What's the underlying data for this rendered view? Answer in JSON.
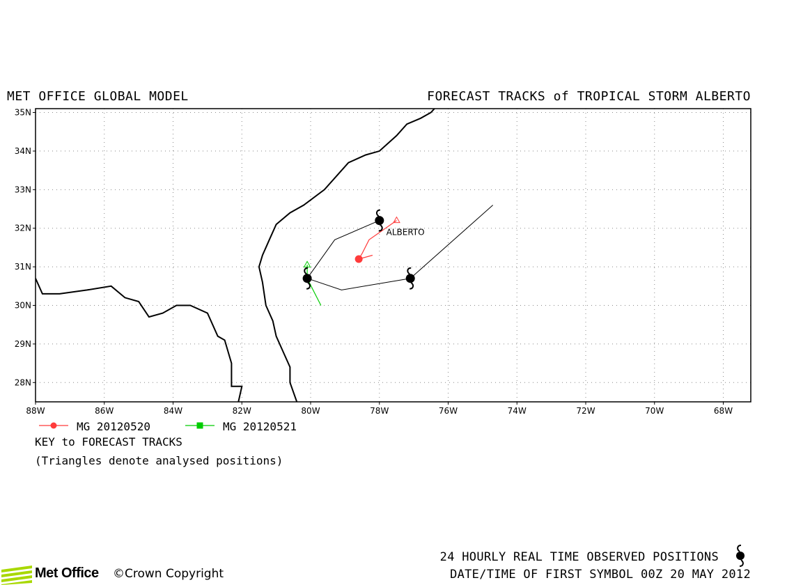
{
  "header": {
    "left_title": "MET OFFICE GLOBAL MODEL",
    "right_title": "FORECAST TRACKS of TROPICAL STORM ALBERTO"
  },
  "chart_data": {
    "type": "map",
    "lon_range": [
      -88,
      -67.2
    ],
    "lat_range": [
      27.5,
      35.1
    ],
    "grid": true,
    "lon_ticks": [
      -88,
      -86,
      -84,
      -82,
      -80,
      -78,
      -76,
      -74,
      -72,
      -70,
      -68
    ],
    "lat_ticks": [
      28,
      29,
      30,
      31,
      32,
      33,
      34,
      35
    ],
    "lon_labels": [
      "88W",
      "86W",
      "84W",
      "82W",
      "80W",
      "78W",
      "76W",
      "74W",
      "72W",
      "70W",
      "68W"
    ],
    "lat_labels": [
      "28N",
      "29N",
      "30N",
      "31N",
      "32N",
      "33N",
      "34N",
      "35N"
    ],
    "storm_label": {
      "text": "ALBERTO",
      "lon": -77.8,
      "lat": 31.9
    },
    "coastline_east": [
      [
        -76.3,
        35.2
      ],
      [
        -76.5,
        35.0
      ],
      [
        -76.8,
        34.85
      ],
      [
        -77.2,
        34.7
      ],
      [
        -77.5,
        34.4
      ],
      [
        -78.0,
        34.0
      ],
      [
        -78.4,
        33.9
      ],
      [
        -78.9,
        33.7
      ],
      [
        -79.2,
        33.4
      ],
      [
        -79.6,
        33.0
      ],
      [
        -80.2,
        32.6
      ],
      [
        -80.6,
        32.4
      ],
      [
        -81.0,
        32.1
      ],
      [
        -81.2,
        31.7
      ],
      [
        -81.4,
        31.3
      ],
      [
        -81.5,
        31.0
      ],
      [
        -81.4,
        30.6
      ],
      [
        -81.3,
        30.0
      ],
      [
        -81.1,
        29.6
      ],
      [
        -81.0,
        29.2
      ],
      [
        -80.8,
        28.8
      ],
      [
        -80.6,
        28.4
      ],
      [
        -80.6,
        28.0
      ],
      [
        -80.4,
        27.5
      ]
    ],
    "coastline_gulf": [
      [
        -88.0,
        30.7
      ],
      [
        -87.8,
        30.3
      ],
      [
        -87.3,
        30.3
      ],
      [
        -86.5,
        30.4
      ],
      [
        -85.8,
        30.5
      ],
      [
        -85.4,
        30.2
      ],
      [
        -85.0,
        30.1
      ],
      [
        -84.7,
        29.7
      ],
      [
        -84.3,
        29.8
      ],
      [
        -83.9,
        30.0
      ],
      [
        -83.5,
        30.0
      ],
      [
        -83.0,
        29.8
      ],
      [
        -82.7,
        29.2
      ],
      [
        -82.5,
        29.1
      ],
      [
        -82.4,
        28.8
      ],
      [
        -82.3,
        28.5
      ],
      [
        -82.3,
        27.9
      ],
      [
        -82.0,
        27.9
      ],
      [
        -82.1,
        27.5
      ]
    ],
    "observed_track": {
      "color": "#000000",
      "points": [
        [
          -77.1,
          30.7
        ],
        [
          -80.1,
          30.7
        ],
        [
          -78.0,
          32.2
        ]
      ],
      "extensions": [
        [
          [
            -77.1,
            30.7
          ],
          [
            -74.7,
            32.6
          ]
        ],
        [
          [
            -80.1,
            30.7
          ],
          [
            -79.1,
            30.4
          ],
          [
            -77.1,
            30.7
          ]
        ],
        [
          [
            -80.1,
            30.7
          ],
          [
            -79.3,
            31.7
          ],
          [
            -78.0,
            32.2
          ]
        ]
      ]
    },
    "series": [
      {
        "name": "MG 20120520",
        "color": "#ff3b3b",
        "marker": "circle",
        "analysed": [
          -77.5,
          32.2
        ],
        "track": [
          [
            -77.5,
            32.2
          ],
          [
            -78.3,
            31.7
          ],
          [
            -78.5,
            31.35
          ],
          [
            -78.6,
            31.2
          ],
          [
            -78.2,
            31.3
          ]
        ]
      },
      {
        "name": "MG 20120521",
        "color": "#00cc00",
        "marker": "square",
        "analysed": [
          -80.1,
          31.05
        ],
        "track": [
          [
            -80.1,
            31.05
          ],
          [
            -80.1,
            30.7
          ],
          [
            -79.9,
            30.35
          ],
          [
            -79.7,
            30.0
          ]
        ]
      }
    ]
  },
  "legend": {
    "series_1_label": "MG 20120520",
    "series_2_label": "MG 20120521",
    "key_title": "KEY to FORECAST TRACKS",
    "note": "(Triangles denote analysed positions)"
  },
  "footer": {
    "observed_line": "24 HOURLY REAL TIME OBSERVED POSITIONS",
    "first_symbol_line": "DATE/TIME OF FIRST SYMBOL 00Z 20 MAY 2012",
    "logo": "Met Office",
    "copyright": "©Crown Copyright"
  },
  "colors": {
    "frame": "#000000",
    "grid": "#888888",
    "logo_green": "#a8d800"
  }
}
